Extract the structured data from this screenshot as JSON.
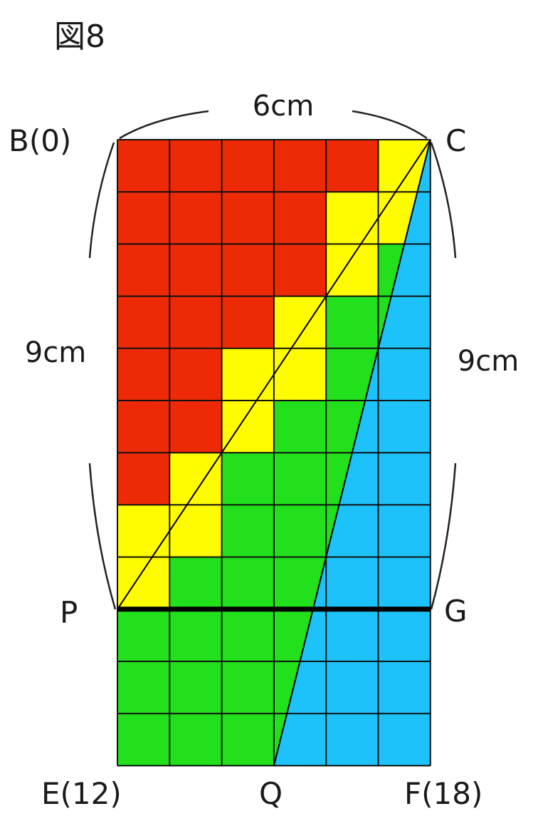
{
  "title": "図8",
  "dimensions": {
    "top": "6cm",
    "left": "9cm",
    "right": "9cm"
  },
  "points": {
    "B": "B(0)",
    "C": "C",
    "P": "P",
    "G": "G",
    "E": "E(12)",
    "Q": "Q",
    "F": "F(18)"
  },
  "colors": {
    "red": "#ee2a06",
    "yellow": "#fffb00",
    "green": "#22e01b",
    "blue": "#1ec2fb",
    "grid": "#111111",
    "line": "#000000"
  },
  "grid": {
    "columns": 6,
    "rows": 12,
    "row_colors": [
      [
        "red",
        "red",
        "red",
        "red",
        "red",
        "yellow"
      ],
      [
        "red",
        "red",
        "red",
        "red",
        "yellow",
        "yellow"
      ],
      [
        "red",
        "red",
        "red",
        "red",
        "yellow",
        "green"
      ],
      [
        "red",
        "red",
        "red",
        "yellow",
        "green",
        "green"
      ],
      [
        "red",
        "red",
        "yellow",
        "yellow",
        "green",
        "green"
      ],
      [
        "red",
        "red",
        "yellow",
        "green",
        "green",
        "green"
      ],
      [
        "red",
        "yellow",
        "green",
        "green",
        "green",
        "green"
      ],
      [
        "yellow",
        "yellow",
        "green",
        "green",
        "green",
        "green"
      ],
      [
        "yellow",
        "green",
        "green",
        "green",
        "green",
        "green"
      ],
      [
        "green",
        "green",
        "green",
        "green",
        "green",
        "green"
      ],
      [
        "green",
        "green",
        "green",
        "green",
        "green",
        "green"
      ],
      [
        "green",
        "green",
        "green",
        "green",
        "green",
        "green"
      ]
    ],
    "blue_triangle": [
      "C",
      "Q",
      "F"
    ]
  },
  "segments": [
    [
      "C",
      "P"
    ],
    [
      "C",
      "Q"
    ],
    [
      "P",
      "G"
    ]
  ]
}
